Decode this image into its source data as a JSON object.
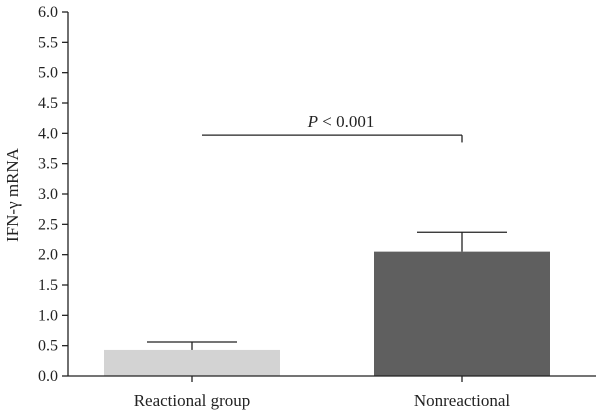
{
  "chart_data": {
    "type": "bar",
    "title": "",
    "xlabel": "",
    "ylabel": "IFN-γ mRNA",
    "ylim": [
      0,
      6.0
    ],
    "yticks": [
      "0.0",
      "0.5",
      "1.0",
      "1.5",
      "2.0",
      "2.5",
      "3.0",
      "3.5",
      "4.0",
      "4.5",
      "5.0",
      "5.5",
      "6.0"
    ],
    "categories": [
      "Reactional group",
      "Nonreactional"
    ],
    "values": [
      0.43,
      2.05
    ],
    "error_upper": [
      0.56,
      2.37
    ],
    "bar_colors": [
      "#d3d3d3",
      "#5f5f5f"
    ],
    "grid": false,
    "legend": "none",
    "annotation": {
      "label_prefix": "P",
      "label_rest": " < 0.001",
      "bracket_y": 3.97,
      "bracket_drop_to": 3.85
    }
  }
}
